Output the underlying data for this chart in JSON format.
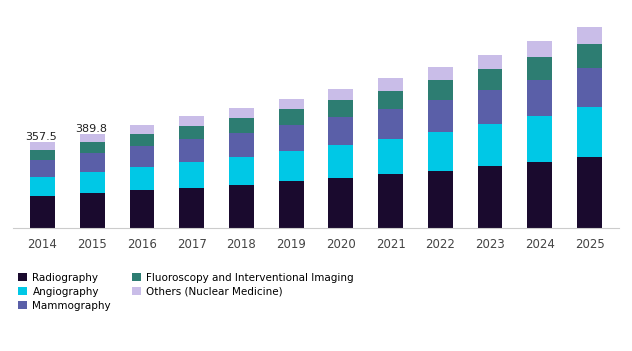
{
  "years": [
    "2014",
    "2015",
    "2016",
    "2017",
    "2018",
    "2019",
    "2020",
    "2021",
    "2022",
    "2023",
    "2024",
    "2025"
  ],
  "radiography": [
    132,
    145,
    157,
    168,
    180,
    193,
    207,
    222,
    238,
    256,
    275,
    296
  ],
  "angiography": [
    78,
    87,
    97,
    107,
    116,
    126,
    137,
    148,
    161,
    174,
    188,
    204
  ],
  "mammography": [
    72,
    78,
    85,
    92,
    99,
    107,
    114,
    123,
    131,
    141,
    151,
    162
  ],
  "fluoroscopy": [
    43,
    47,
    52,
    56,
    61,
    65,
    70,
    75,
    81,
    87,
    94,
    101
  ],
  "others": [
    33,
    33,
    36,
    39,
    42,
    45,
    48,
    52,
    56,
    60,
    65,
    70
  ],
  "colors": {
    "radiography": "#1a0a2e",
    "angiography": "#00c8e6",
    "mammography": "#5a5fa8",
    "fluoroscopy": "#2d7d72",
    "others": "#c9bde8"
  },
  "labels": {
    "radiography": "Radiography",
    "angiography": "Angiography",
    "mammography": "Mammography",
    "fluoroscopy": "Fluoroscopy and Interventional Imaging",
    "others": "Others (Nuclear Medicine)"
  },
  "annotations": [
    {
      "year_idx": 0,
      "text": "357.5"
    },
    {
      "year_idx": 1,
      "text": "389.8"
    }
  ],
  "bar_width": 0.5,
  "ylim": [
    0,
    900
  ],
  "background_color": "#ffffff"
}
